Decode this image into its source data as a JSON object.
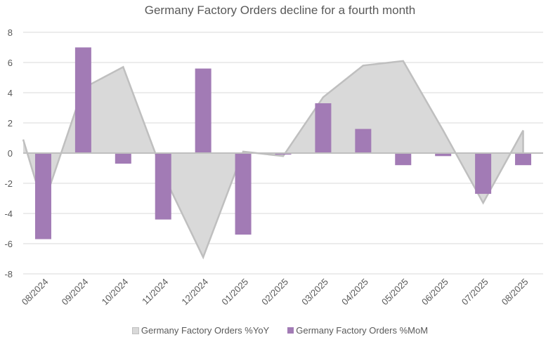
{
  "chart_data": {
    "type": "bar",
    "title": "Germany Factory Orders decline for a fourth month",
    "xlabel": "",
    "ylabel": "",
    "ylim": [
      -8,
      8
    ],
    "yticks": [
      8,
      6,
      4,
      2,
      0,
      -2,
      -4,
      -6,
      -8
    ],
    "ytick_labels": [
      "8",
      "6",
      "4",
      "2",
      "0",
      "-2",
      "-4",
      "-6",
      "-8"
    ],
    "grid": true,
    "legend_position": "bottom",
    "categories": [
      "08/2024",
      "09/2024",
      "10/2024",
      "11/2024",
      "12/2024",
      "01/2025",
      "02/2025",
      "03/2025",
      "04/2025",
      "05/2025",
      "06/2025",
      "07/2025",
      "08/2025"
    ],
    "series": [
      {
        "name": "Germany Factory Orders %YoY",
        "type": "area",
        "color": "#d9d9d9",
        "line_color": "#bfbfbf",
        "value_at_left_axis": 0.9,
        "values": [
          -3.5,
          4.3,
          5.7,
          -1.4,
          -6.9,
          0.1,
          -0.2,
          3.7,
          5.8,
          6.1,
          1.5,
          -3.3,
          1.5
        ]
      },
      {
        "name": "Germany Factory Orders %MoM",
        "type": "bar",
        "color": "#a27bb5",
        "values": [
          -5.7,
          7.0,
          -0.7,
          -4.4,
          5.6,
          -5.4,
          -0.1,
          3.3,
          1.6,
          -0.8,
          -0.2,
          -2.7,
          -0.8
        ]
      }
    ]
  }
}
